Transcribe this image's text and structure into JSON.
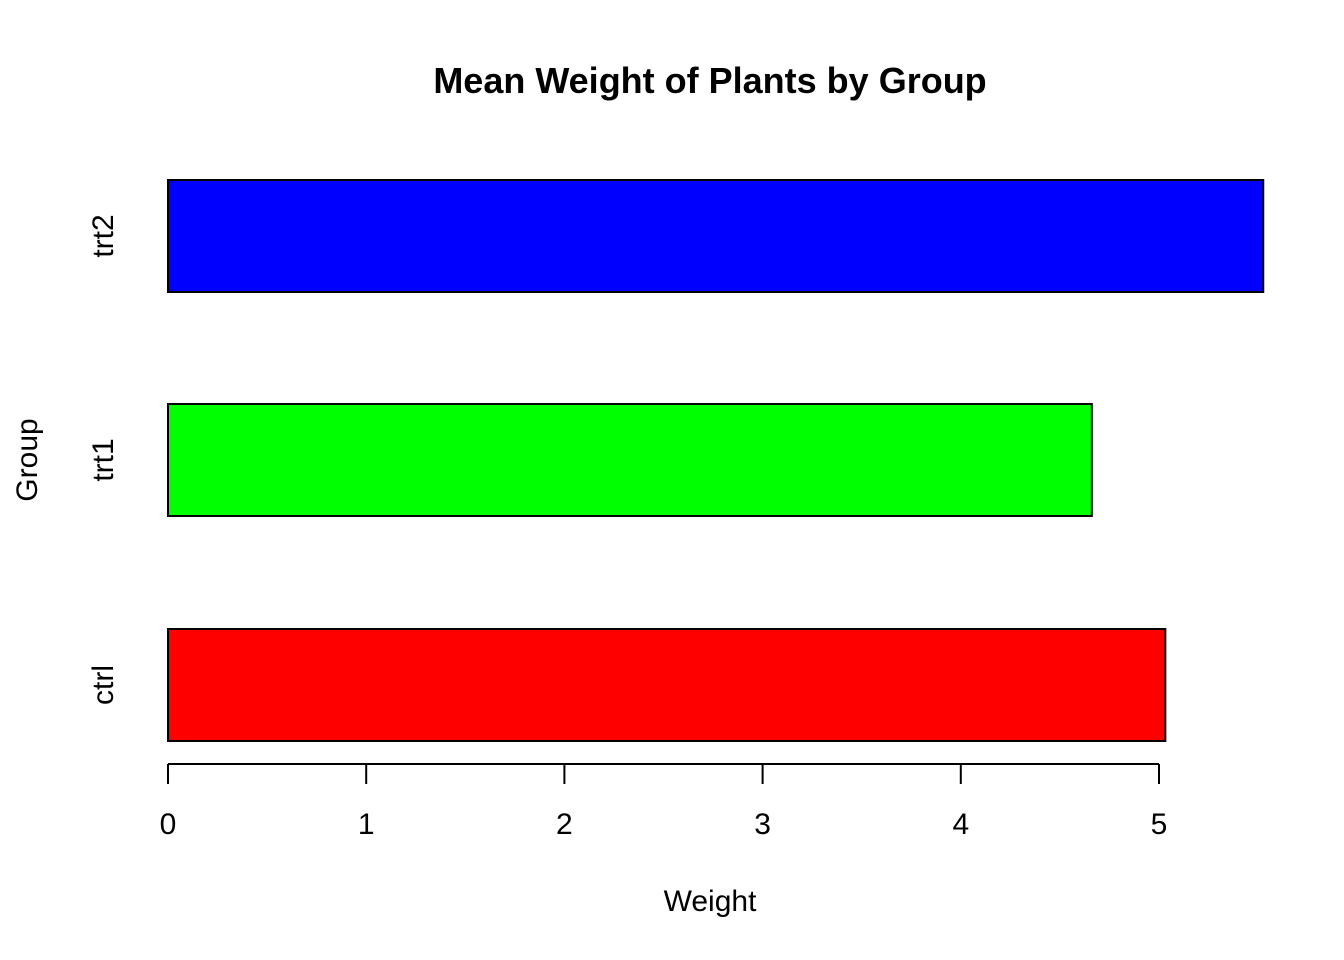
{
  "chart_data": {
    "type": "bar",
    "orientation": "horizontal",
    "title": "Mean Weight of Plants by Group",
    "xlabel": "Weight",
    "ylabel": "Group",
    "categories": [
      "ctrl",
      "trt1",
      "trt2"
    ],
    "values": [
      5.032,
      4.661,
      5.526
    ],
    "colors": [
      "#ff0000",
      "#00ff00",
      "#0000ff"
    ],
    "xlim": [
      0,
      5.526
    ],
    "xticks": [
      0,
      1,
      2,
      3,
      4,
      5
    ],
    "grid": false,
    "legend": "none"
  }
}
